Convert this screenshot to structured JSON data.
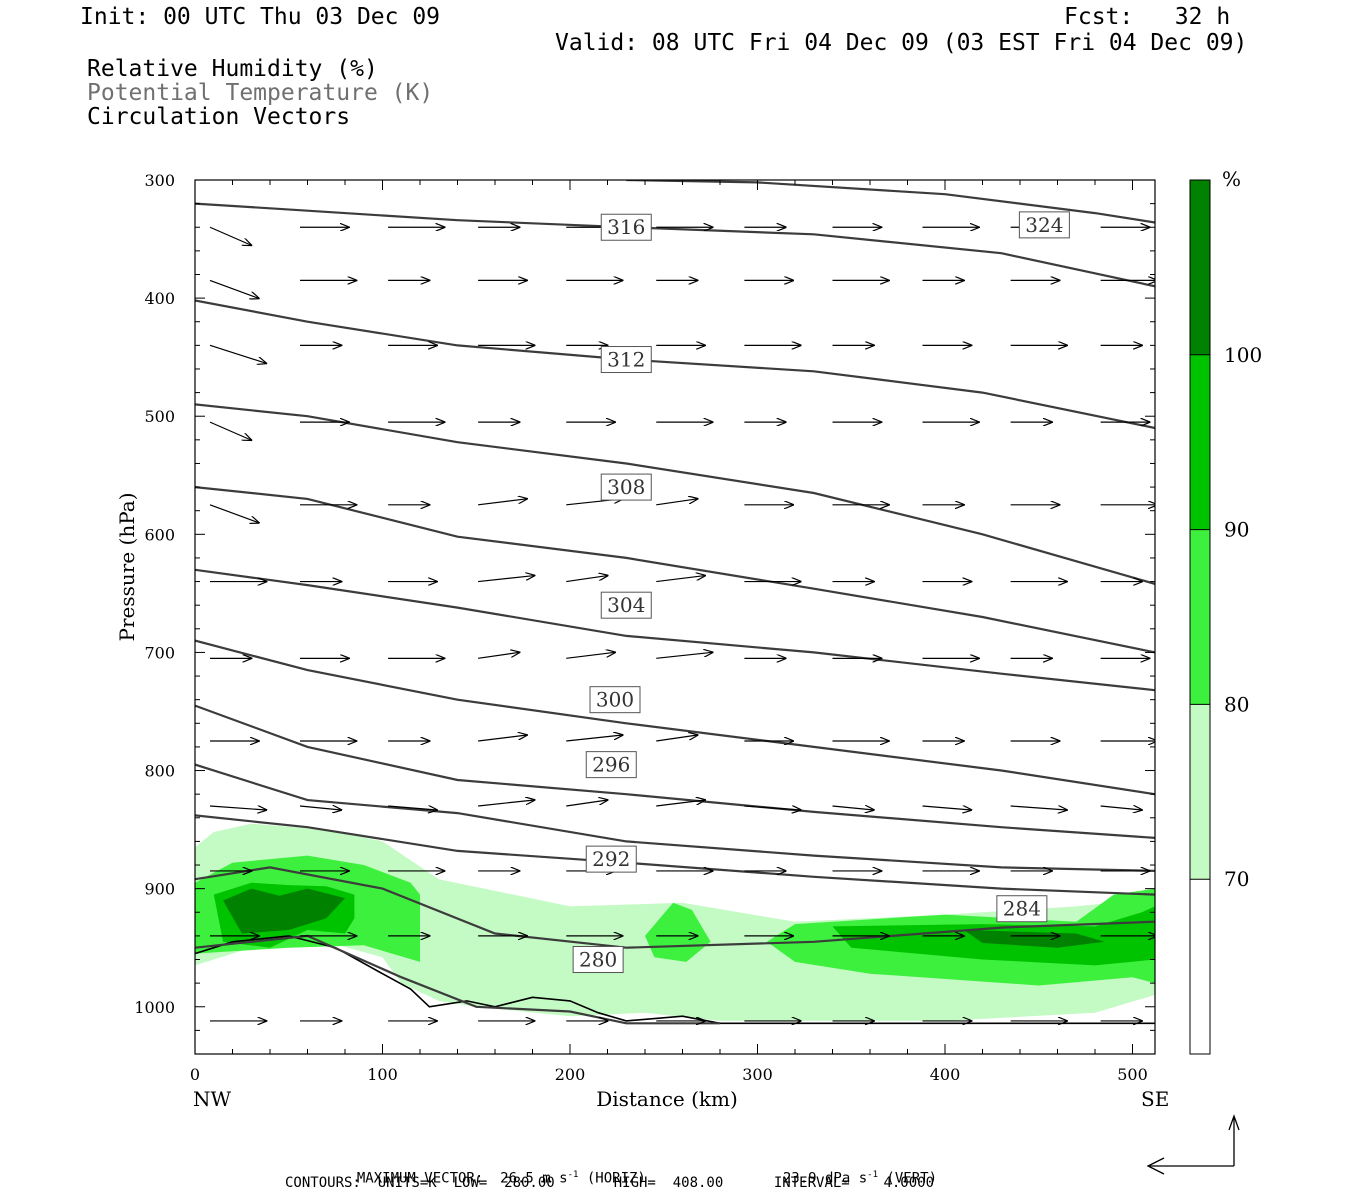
{
  "header": {
    "init": "Init: 00 UTC Thu 03 Dec 09",
    "fcst": "Fcst:   32 h",
    "valid": "Valid: 08 UTC Fri 04 Dec 09 (03 EST Fri 04 Dec 09)",
    "fields": [
      "Relative Humidity (%)",
      "Potential Temperature (K)",
      "Circulation Vectors"
    ]
  },
  "colors": {
    "rh70": "#c4fac4",
    "rh80": "#3df03d",
    "rh90": "#00c300",
    "rh100": "#008200",
    "theta": "#3c3c3c",
    "vector": "#000000",
    "subtitle_gray": "#707070"
  },
  "chart_data": {
    "type": "cross-section",
    "xlabel": "Distance (km)",
    "ylabel": "Pressure (hPa)",
    "x_ticks": [
      0,
      100,
      200,
      300,
      400,
      500
    ],
    "y_ticks": [
      300,
      400,
      500,
      600,
      700,
      800,
      900,
      1000
    ],
    "xlim": [
      0,
      512
    ],
    "ylim": [
      300,
      1040
    ],
    "end_labels": {
      "left": "NW",
      "right": "SE"
    },
    "colorbar": {
      "unit": "%",
      "levels": [
        70,
        80,
        90,
        100
      ],
      "labels": [
        "70",
        "80",
        "90",
        "100"
      ]
    },
    "theta_contours": [
      {
        "value": 324,
        "label": "324",
        "points": [
          [
            230,
            300
          ],
          [
            300,
            302
          ],
          [
            400,
            312
          ],
          [
            480,
            328
          ],
          [
            512,
            336
          ]
        ],
        "label_at": [
          453,
          338
        ]
      },
      {
        "value": 320,
        "label": "",
        "points": [
          [
            0,
            320
          ],
          [
            60,
            326
          ],
          [
            140,
            334
          ],
          [
            230,
            340
          ],
          [
            330,
            346
          ],
          [
            430,
            362
          ],
          [
            512,
            390
          ]
        ]
      },
      {
        "value": 316,
        "label": "316",
        "points": [
          [
            0,
            402
          ],
          [
            60,
            420
          ],
          [
            140,
            440
          ],
          [
            230,
            452
          ],
          [
            330,
            462
          ],
          [
            420,
            480
          ],
          [
            512,
            510
          ]
        ],
        "label_at": [
          230,
          340
        ]
      },
      {
        "value": 312,
        "label": "312",
        "points": [
          [
            0,
            490
          ],
          [
            60,
            500
          ],
          [
            140,
            522
          ],
          [
            230,
            540
          ],
          [
            330,
            565
          ],
          [
            420,
            600
          ],
          [
            512,
            642
          ]
        ],
        "label_at": [
          230,
          452
        ]
      },
      {
        "value": 308,
        "label": "308",
        "points": [
          [
            0,
            560
          ],
          [
            60,
            570
          ],
          [
            140,
            602
          ],
          [
            230,
            620
          ],
          [
            330,
            646
          ],
          [
            420,
            670
          ],
          [
            512,
            700
          ]
        ],
        "label_at": [
          230,
          560
        ]
      },
      {
        "value": 304,
        "label": "304",
        "points": [
          [
            0,
            630
          ],
          [
            60,
            643
          ],
          [
            140,
            662
          ],
          [
            230,
            686
          ],
          [
            330,
            700
          ],
          [
            430,
            718
          ],
          [
            512,
            732
          ]
        ],
        "label_at": [
          230,
          660
        ]
      },
      {
        "value": 300,
        "label": "300",
        "points": [
          [
            0,
            690
          ],
          [
            60,
            715
          ],
          [
            140,
            740
          ],
          [
            230,
            760
          ],
          [
            330,
            780
          ],
          [
            430,
            800
          ],
          [
            512,
            820
          ]
        ],
        "label_at": [
          224,
          740
        ]
      },
      {
        "value": 296,
        "label": "296",
        "points": [
          [
            0,
            745
          ],
          [
            60,
            780
          ],
          [
            140,
            808
          ],
          [
            230,
            820
          ],
          [
            330,
            835
          ],
          [
            430,
            848
          ],
          [
            512,
            857
          ]
        ],
        "label_at": [
          222,
          795
        ]
      },
      {
        "value": 292,
        "label": "292",
        "points": [
          [
            0,
            795
          ],
          [
            60,
            825
          ],
          [
            140,
            836
          ],
          [
            230,
            860
          ],
          [
            330,
            872
          ],
          [
            430,
            882
          ],
          [
            512,
            885
          ]
        ],
        "label_at": [
          222,
          875
        ]
      },
      {
        "value": 288,
        "label": "",
        "points": [
          [
            0,
            838
          ],
          [
            60,
            848
          ],
          [
            140,
            868
          ],
          [
            230,
            878
          ],
          [
            330,
            890
          ],
          [
            430,
            900
          ],
          [
            512,
            905
          ]
        ]
      },
      {
        "value": 284,
        "label": "284",
        "points": [
          [
            0,
            892
          ],
          [
            40,
            882
          ],
          [
            100,
            900
          ],
          [
            160,
            938
          ],
          [
            230,
            950
          ],
          [
            330,
            945
          ],
          [
            430,
            933
          ],
          [
            512,
            928
          ]
        ],
        "label_at": [
          441,
          917
        ]
      },
      {
        "value": 280,
        "label": "280",
        "points": [
          [
            0,
            950
          ],
          [
            60,
            940
          ],
          [
            110,
            975
          ],
          [
            150,
            1000
          ],
          [
            200,
            1004
          ],
          [
            230,
            1014
          ],
          [
            280,
            1014
          ]
        ],
        "label_at": [
          215,
          960
        ]
      }
    ]
  },
  "footer": {
    "max_vector": "MAXIMUM VECTOR:  26.5 m s",
    "max_vector_unit": "-1",
    "max_vector_horiz": " (HORIZ)",
    "max_vector_vert": "23.9 dPa s",
    "max_vector_vert_unit": "-1",
    "max_vector_vert_tail": " (VERT)",
    "contours": "CONTOURS:  UNITS=K  LOW=  280.00       HIGH=  408.00      INTERVAL=    4.0000"
  }
}
